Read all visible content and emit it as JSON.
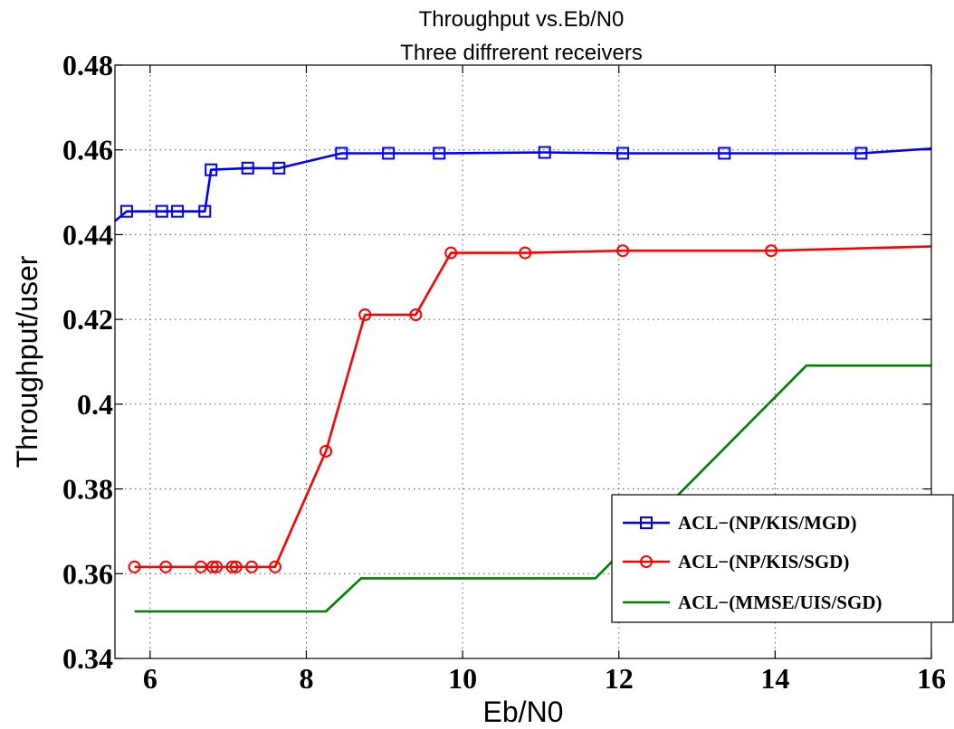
{
  "chart_data": {
    "type": "line",
    "title": "Throughput vs.Eb/N0",
    "subtitle": "Three diffrerent receivers",
    "xlabel": "Eb/N0",
    "ylabel": "Throughput/user",
    "xlim": [
      5.55,
      16
    ],
    "ylim": [
      0.34,
      0.48
    ],
    "xticks": [
      6,
      8,
      10,
      12,
      14,
      16
    ],
    "yticks": [
      0.34,
      0.36,
      0.38,
      0.4,
      0.42,
      0.44,
      0.46,
      0.48
    ],
    "xtick_labels": [
      "6",
      "8",
      "10",
      "12",
      "14",
      "16"
    ],
    "ytick_labels": [
      "0.34",
      "0.36",
      "0.38",
      "0.4",
      "0.42",
      "0.44",
      "0.46",
      "0.48"
    ],
    "grid": true,
    "legend_position": "bottom-right",
    "series": [
      {
        "name": "ACL−(NP/KIS/MGD)",
        "color": "#0000ff",
        "marker": "square",
        "line": [
          [
            5.55,
            0.4432
          ],
          [
            5.7,
            0.4455
          ],
          [
            6.15,
            0.4455
          ],
          [
            6.35,
            0.4455
          ],
          [
            6.7,
            0.4455
          ],
          [
            6.78,
            0.4553
          ],
          [
            7.25,
            0.4557
          ],
          [
            7.65,
            0.4557
          ],
          [
            8.45,
            0.4592
          ],
          [
            9.05,
            0.4592
          ],
          [
            9.7,
            0.4592
          ],
          [
            11.05,
            0.4594
          ],
          [
            12.05,
            0.4592
          ],
          [
            13.35,
            0.4592
          ],
          [
            15.1,
            0.4592
          ],
          [
            16.0,
            0.4603
          ]
        ],
        "markers": [
          [
            5.7,
            0.4455
          ],
          [
            6.15,
            0.4455
          ],
          [
            6.35,
            0.4455
          ],
          [
            6.7,
            0.4455
          ],
          [
            6.78,
            0.4553
          ],
          [
            7.25,
            0.4557
          ],
          [
            7.65,
            0.4557
          ],
          [
            8.45,
            0.4592
          ],
          [
            9.05,
            0.4592
          ],
          [
            9.7,
            0.4592
          ],
          [
            11.05,
            0.4594
          ],
          [
            12.05,
            0.4592
          ],
          [
            13.35,
            0.4592
          ],
          [
            15.1,
            0.4592
          ]
        ]
      },
      {
        "name": "ACL−(NP/KIS/SGD)",
        "color": "#ff0000",
        "marker": "circle",
        "line": [
          [
            5.8,
            0.3616
          ],
          [
            6.2,
            0.3616
          ],
          [
            6.65,
            0.3616
          ],
          [
            6.8,
            0.3616
          ],
          [
            6.85,
            0.3616
          ],
          [
            7.05,
            0.3616
          ],
          [
            7.1,
            0.3616
          ],
          [
            7.3,
            0.3616
          ],
          [
            7.6,
            0.3616
          ],
          [
            8.25,
            0.3889
          ],
          [
            8.75,
            0.4211
          ],
          [
            9.4,
            0.4211
          ],
          [
            9.85,
            0.4357
          ],
          [
            10.8,
            0.4357
          ],
          [
            12.05,
            0.4362
          ],
          [
            13.95,
            0.4362
          ],
          [
            16.0,
            0.4372
          ]
        ],
        "markers": [
          [
            5.8,
            0.3616
          ],
          [
            6.2,
            0.3616
          ],
          [
            6.65,
            0.3616
          ],
          [
            6.8,
            0.3616
          ],
          [
            6.85,
            0.3616
          ],
          [
            7.05,
            0.3616
          ],
          [
            7.1,
            0.3616
          ],
          [
            7.3,
            0.3616
          ],
          [
            7.6,
            0.3616
          ],
          [
            8.25,
            0.3889
          ],
          [
            8.75,
            0.4211
          ],
          [
            9.4,
            0.4211
          ],
          [
            9.85,
            0.4357
          ],
          [
            10.8,
            0.4357
          ],
          [
            12.05,
            0.4362
          ],
          [
            13.95,
            0.4362
          ]
        ]
      },
      {
        "name": "ACL−(MMSE/UIS/SGD)",
        "color": "#007f00",
        "marker": "none",
        "line": [
          [
            5.8,
            0.3511
          ],
          [
            8.25,
            0.3511
          ],
          [
            8.7,
            0.3589
          ],
          [
            11.7,
            0.3589
          ],
          [
            14.4,
            0.4091
          ],
          [
            16.0,
            0.4091
          ]
        ],
        "markers": []
      }
    ]
  }
}
